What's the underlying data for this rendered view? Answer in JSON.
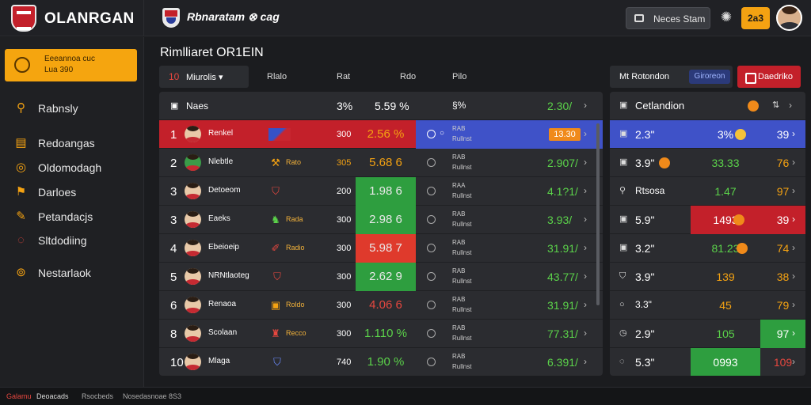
{
  "header": {
    "app_title": "OLANRGAN",
    "match_title": "Rbnaratam ⊗ cag",
    "search_label": "Neces Stam",
    "balance": "2a3"
  },
  "sidebar": {
    "promo_line1": "Eeeannoa cuc",
    "promo_line2": "Lua 390",
    "items": [
      {
        "label": "Rabnsly",
        "icon": "trophy-icon"
      },
      {
        "label": "Redoangas",
        "icon": "chart-icon"
      },
      {
        "label": "Oldomodagh",
        "icon": "coin-icon"
      },
      {
        "label": "Darloes",
        "icon": "flag-icon"
      },
      {
        "label": "Petandacjs",
        "icon": "whistle-icon"
      },
      {
        "label": "Sltdodiing",
        "icon": "clock-icon"
      },
      {
        "label": "Nestarlaok",
        "icon": "power-icon"
      }
    ]
  },
  "main": {
    "section_title": "Rimlliaret OR1EIN",
    "select_num": "10",
    "select_label": "Miurolis",
    "header_cols": [
      "Rlalo",
      "Rat",
      "Rdo",
      "Pilo"
    ],
    "thead": {
      "label": "Naes",
      "pct": "3%",
      "odd": "5.59 %",
      "sub": "§%",
      "right": "2.30/"
    },
    "rows": [
      {
        "rank": "1",
        "name": "Renkel",
        "a": "300",
        "odd": "2.56 %",
        "sub1": "RAB",
        "sub2": "Rullnst",
        "right": "13.30"
      },
      {
        "rank": "2",
        "name": "Nlebtle",
        "tag": "Rato",
        "a": "305",
        "odd": "5.68 6",
        "sub1": "RAB",
        "sub2": "Rullnst",
        "right": "2.907/"
      },
      {
        "rank": "3",
        "name": "Detoeom",
        "a": "200",
        "odd": "1.98 6",
        "sub1": "RAA",
        "sub2": "Rullnst",
        "right": "4.1?1/"
      },
      {
        "rank": "3",
        "name": "Eaeks",
        "tag": "Rada",
        "a": "300",
        "odd": "2.98 6",
        "sub1": "RAB",
        "sub2": "Rullnst",
        "right": "3.93/"
      },
      {
        "rank": "4",
        "name": "Ebeioeip",
        "tag": "Radio",
        "a": "300",
        "odd": "5.98 7",
        "sub1": "RAB",
        "sub2": "Rullnst",
        "right": "31.91/"
      },
      {
        "rank": "5",
        "name": "NRNtlaoteg",
        "a": "300",
        "odd": "2.62 9",
        "sub1": "RAB",
        "sub2": "Rullnst",
        "right": "43.77/"
      },
      {
        "rank": "6",
        "name": "Renaoa",
        "tag": "Roldo",
        "a": "300",
        "odd": "4.06 6",
        "sub1": "RAB",
        "sub2": "Rullnst",
        "right": "31.91/"
      },
      {
        "rank": "8",
        "name": "Scolaan",
        "tag": "Recco",
        "a": "300",
        "odd": "1.110 %",
        "sub1": "RAB",
        "sub2": "Rullnst",
        "right": "77.31/"
      },
      {
        "rank": "10",
        "name": "Mlaga",
        "a": "740",
        "odd": "1.90 %",
        "sub1": "RAB",
        "sub2": "Rullnst",
        "right": "6.391/"
      }
    ]
  },
  "right": {
    "tab1": "Mt Rotondon",
    "tab2": "Giroreon",
    "tab3": "Daedriko",
    "head": "Cetlandion",
    "rows": [
      {
        "name": "2.3\"",
        "mid": "3%",
        "last": "39"
      },
      {
        "name": "3.9\"",
        "mid": "33.33",
        "last": "76"
      },
      {
        "name": "Rtsosa",
        "mid": "1.47",
        "last": "97"
      },
      {
        "name": "5.9\"",
        "mid": "1493",
        "last": "39"
      },
      {
        "name": "3.2\"",
        "mid": "81.23",
        "last": "74"
      },
      {
        "name": "3.9\"",
        "mid": "139",
        "last": "38"
      },
      {
        "name": "3.3\"",
        "mid": "45",
        "last": "79"
      },
      {
        "name": "2.9\"",
        "mid": "105",
        "last": "97"
      },
      {
        "name": "5.3\"",
        "mid": "0993",
        "last": "109"
      }
    ]
  },
  "footer": [
    "Galamu",
    "Deoacads",
    "Rsocbeds",
    "Nosedasnoae 8S3"
  ]
}
